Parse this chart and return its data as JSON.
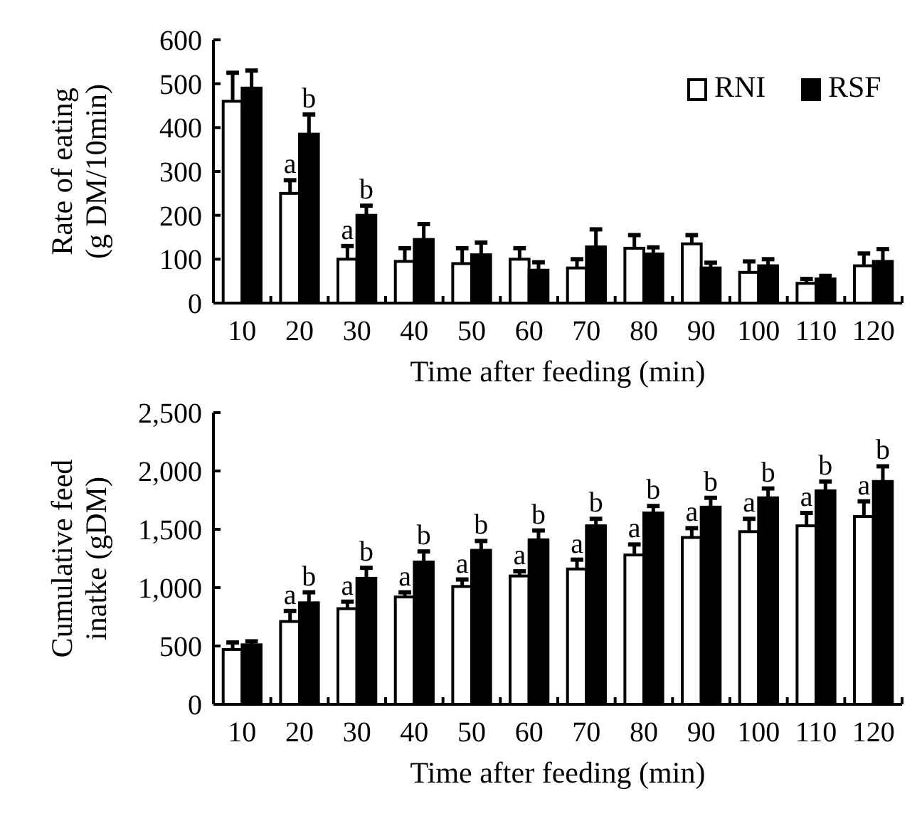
{
  "chart_data": [
    {
      "type": "bar",
      "ylabel": "Rate of eating\n(g DM/10min)",
      "xlabel": "Time after feeding (min)",
      "categories": [
        "10",
        "20",
        "30",
        "40",
        "50",
        "60",
        "70",
        "80",
        "90",
        "100",
        "110",
        "120"
      ],
      "series": [
        {
          "name": "RNI",
          "color": "#ffffff",
          "values": [
            460,
            250,
            100,
            95,
            90,
            100,
            80,
            125,
            135,
            70,
            45,
            85
          ],
          "errors": [
            65,
            30,
            30,
            30,
            35,
            25,
            20,
            30,
            20,
            25,
            10,
            28
          ]
        },
        {
          "name": "RSF",
          "color": "#000000",
          "values": [
            490,
            385,
            200,
            145,
            110,
            75,
            128,
            112,
            80,
            85,
            55,
            95
          ],
          "errors": [
            40,
            45,
            22,
            35,
            28,
            18,
            40,
            15,
            12,
            15,
            7,
            28
          ]
        }
      ],
      "ylim": [
        0,
        600
      ],
      "yticks": [
        0,
        100,
        200,
        300,
        400,
        500,
        600
      ],
      "grid": false,
      "legend": "top right",
      "annotations": [
        {
          "text": "a",
          "x": "20",
          "y": 250
        },
        {
          "text": "b",
          "x": "20",
          "y": 385
        },
        {
          "text": "a",
          "x": "30",
          "y": 100
        },
        {
          "text": "b",
          "x": "30",
          "y": 200
        }
      ]
    },
    {
      "type": "bar",
      "ylabel": "Cumulative feed\ninatke (gDM)",
      "xlabel": "Time after feeding (min)",
      "categories": [
        "10",
        "20",
        "30",
        "40",
        "50",
        "60",
        "70",
        "80",
        "90",
        "100",
        "110",
        "120"
      ],
      "series": [
        {
          "color": "#ffffff",
          "values": [
            470,
            710,
            820,
            920,
            1010,
            1100,
            1160,
            1280,
            1430,
            1480,
            1530,
            1610
          ],
          "errors": [
            60,
            90,
            60,
            40,
            60,
            40,
            80,
            90,
            80,
            110,
            110,
            130
          ]
        },
        {
          "color": "#000000",
          "values": [
            510,
            870,
            1080,
            1220,
            1320,
            1410,
            1530,
            1640,
            1690,
            1770,
            1830,
            1910
          ],
          "errors": [
            30,
            90,
            90,
            90,
            80,
            80,
            60,
            60,
            80,
            80,
            80,
            130
          ]
        }
      ],
      "ylim": [
        0,
        2500
      ],
      "yticks": [
        0,
        500,
        {
          "value": 1000,
          "label": "1,000"
        },
        {
          "value": 1500,
          "label": "1,500"
        },
        {
          "value": 2000,
          "label": "2,000"
        },
        {
          "value": 2500,
          "label": "2,500"
        }
      ],
      "grid": false,
      "legend": false,
      "annotations": [
        {
          "text": "a",
          "x": "20",
          "y": 710
        },
        {
          "text": "b",
          "x": "20",
          "y": 870
        },
        {
          "text": "a",
          "x": "30",
          "y": 820
        },
        {
          "text": "b",
          "x": "30",
          "y": 1080
        },
        {
          "text": "a",
          "x": "40",
          "y": 920
        },
        {
          "text": "b",
          "x": "40",
          "y": 1220
        },
        {
          "text": "a",
          "x": "50",
          "y": 1010
        },
        {
          "text": "b",
          "x": "50",
          "y": 1320
        },
        {
          "text": "a",
          "x": "60",
          "y": 1100
        },
        {
          "text": "b",
          "x": "60",
          "y": 1410
        },
        {
          "text": "a",
          "x": "70",
          "y": 1160
        },
        {
          "text": "b",
          "x": "70",
          "y": 1530
        },
        {
          "text": "a",
          "x": "80",
          "y": 1280
        },
        {
          "text": "b",
          "x": "80",
          "y": 1640
        },
        {
          "text": "a",
          "x": "90",
          "y": 1430
        },
        {
          "text": "b",
          "x": "90",
          "y": 1690
        },
        {
          "text": "a",
          "x": "100",
          "y": 1480
        },
        {
          "text": "b",
          "x": "100",
          "y": 1770
        },
        {
          "text": "a",
          "x": "110",
          "y": 1530
        },
        {
          "text": "b",
          "x": "110",
          "y": 1830
        },
        {
          "text": "a",
          "x": "120",
          "y": 1610
        },
        {
          "text": "b",
          "x": "120",
          "y": 1910
        }
      ]
    }
  ]
}
